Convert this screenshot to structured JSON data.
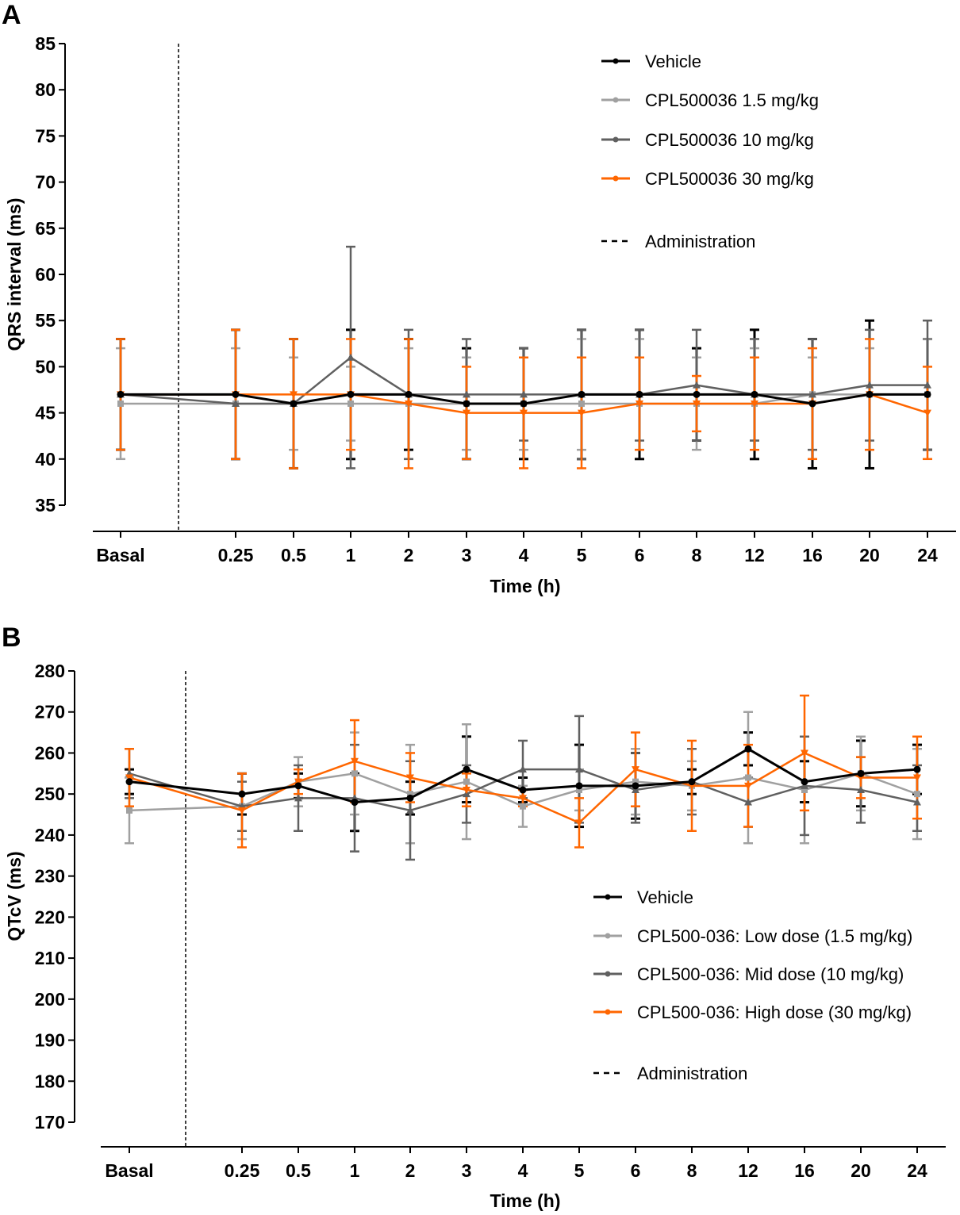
{
  "colors": {
    "vehicle": "#000000",
    "low": "#a0a0a0",
    "mid": "#606060",
    "high": "#ff6600"
  },
  "chart_data": [
    {
      "panel_label": "A",
      "type": "line",
      "title": "",
      "xlabel": "Time (h)",
      "ylabel": "QRS interval (ms)",
      "ylim": [
        35,
        85
      ],
      "yticks": [
        35,
        40,
        45,
        50,
        55,
        60,
        65,
        70,
        75,
        80,
        85
      ],
      "categories": [
        "Basal",
        "0.25",
        "0.5",
        "1",
        "2",
        "3",
        "4",
        "5",
        "6",
        "8",
        "12",
        "16",
        "20",
        "24"
      ],
      "annotation": "Administration",
      "legend_position": "top-right",
      "series": [
        {
          "name": "Vehicle",
          "key": "vehicle",
          "values": [
            47,
            47,
            46,
            47,
            47,
            46,
            46,
            47,
            47,
            47,
            47,
            46,
            47,
            47
          ],
          "upper": [
            53,
            54,
            53,
            54,
            53,
            52,
            52,
            54,
            54,
            52,
            54,
            53,
            55,
            53
          ],
          "lower": [
            41,
            40,
            39,
            40,
            41,
            40,
            40,
            40,
            40,
            42,
            40,
            39,
            39,
            41
          ]
        },
        {
          "name": "CPL500036 1.5 mg/kg",
          "key": "low",
          "values": [
            46,
            46,
            46,
            46,
            46,
            46,
            46,
            46,
            46,
            46,
            46,
            47,
            47,
            47
          ],
          "upper": [
            52,
            52,
            51,
            50,
            52,
            51,
            51,
            53,
            53,
            51,
            52,
            51,
            52,
            53
          ],
          "lower": [
            40,
            40,
            41,
            42,
            40,
            41,
            41,
            41,
            41,
            41,
            42,
            41,
            41,
            41
          ]
        },
        {
          "name": "CPL500036 10 mg/kg",
          "key": "mid",
          "values": [
            47,
            46,
            46,
            51,
            47,
            47,
            47,
            47,
            47,
            48,
            47,
            47,
            48,
            48
          ],
          "upper": [
            53,
            54,
            53,
            63,
            54,
            53,
            52,
            54,
            54,
            54,
            53,
            53,
            54,
            55
          ],
          "lower": [
            41,
            40,
            39,
            39,
            40,
            40,
            42,
            40,
            42,
            42,
            42,
            41,
            42,
            41
          ]
        },
        {
          "name": "CPL500036 30 mg/kg",
          "key": "high",
          "values": [
            47,
            47,
            47,
            47,
            46,
            45,
            45,
            45,
            46,
            46,
            46,
            46,
            47,
            45
          ],
          "upper": [
            53,
            54,
            53,
            53,
            53,
            50,
            51,
            51,
            51,
            49,
            51,
            52,
            53,
            50
          ],
          "lower": [
            41,
            40,
            39,
            41,
            39,
            40,
            39,
            39,
            41,
            43,
            41,
            40,
            41,
            40
          ]
        }
      ]
    },
    {
      "panel_label": "B",
      "type": "line",
      "title": "",
      "xlabel": "Time (h)",
      "ylabel": "QTcV (ms)",
      "ylim": [
        170,
        280
      ],
      "yticks": [
        170,
        180,
        190,
        200,
        210,
        220,
        230,
        240,
        250,
        260,
        270,
        280
      ],
      "categories": [
        "Basal",
        "0.25",
        "0.5",
        "1",
        "2",
        "3",
        "4",
        "5",
        "6",
        "8",
        "12",
        "16",
        "20",
        "24"
      ],
      "annotation": "Administration",
      "legend_position": "bottom-right",
      "series": [
        {
          "name": "Vehicle",
          "key": "vehicle",
          "values": [
            253,
            250,
            252,
            248,
            249,
            256,
            251,
            252,
            252,
            253,
            261,
            253,
            255,
            256
          ],
          "upper": [
            256,
            255,
            255,
            255,
            253,
            264,
            254,
            262,
            260,
            256,
            265,
            258,
            263,
            262
          ],
          "lower": [
            250,
            245,
            249,
            241,
            245,
            248,
            248,
            242,
            244,
            250,
            257,
            248,
            247,
            250
          ]
        },
        {
          "name": "CPL500-036: Low dose (1.5 mg/kg)",
          "key": "low",
          "values": [
            246,
            247,
            253,
            255,
            250,
            253,
            247,
            251,
            253,
            252,
            254,
            251,
            255,
            250
          ],
          "upper": [
            254,
            255,
            259,
            265,
            262,
            267,
            252,
            256,
            261,
            258,
            270,
            264,
            264,
            261
          ],
          "lower": [
            238,
            239,
            247,
            245,
            238,
            239,
            242,
            246,
            245,
            246,
            238,
            238,
            246,
            239
          ]
        },
        {
          "name": "CPL500-036: Mid dose (10 mg/kg)",
          "key": "mid",
          "values": [
            255,
            247,
            249,
            249,
            246,
            250,
            256,
            256,
            251,
            253,
            248,
            252,
            251,
            248
          ],
          "upper": [
            261,
            253,
            257,
            262,
            258,
            257,
            263,
            269,
            260,
            261,
            254,
            264,
            259,
            257
          ],
          "lower": [
            249,
            241,
            241,
            236,
            234,
            243,
            249,
            243,
            243,
            245,
            242,
            240,
            243,
            241
          ]
        },
        {
          "name": "CPL500-036: High dose (30 mg/kg)",
          "key": "high",
          "values": [
            254,
            246,
            253,
            258,
            254,
            251,
            249,
            243,
            256,
            252,
            252,
            260,
            254,
            254
          ],
          "upper": [
            261,
            255,
            256,
            268,
            260,
            255,
            251,
            249,
            265,
            263,
            262,
            274,
            259,
            264
          ],
          "lower": [
            247,
            237,
            250,
            248,
            248,
            247,
            247,
            237,
            247,
            241,
            242,
            246,
            249,
            244
          ]
        }
      ]
    }
  ]
}
